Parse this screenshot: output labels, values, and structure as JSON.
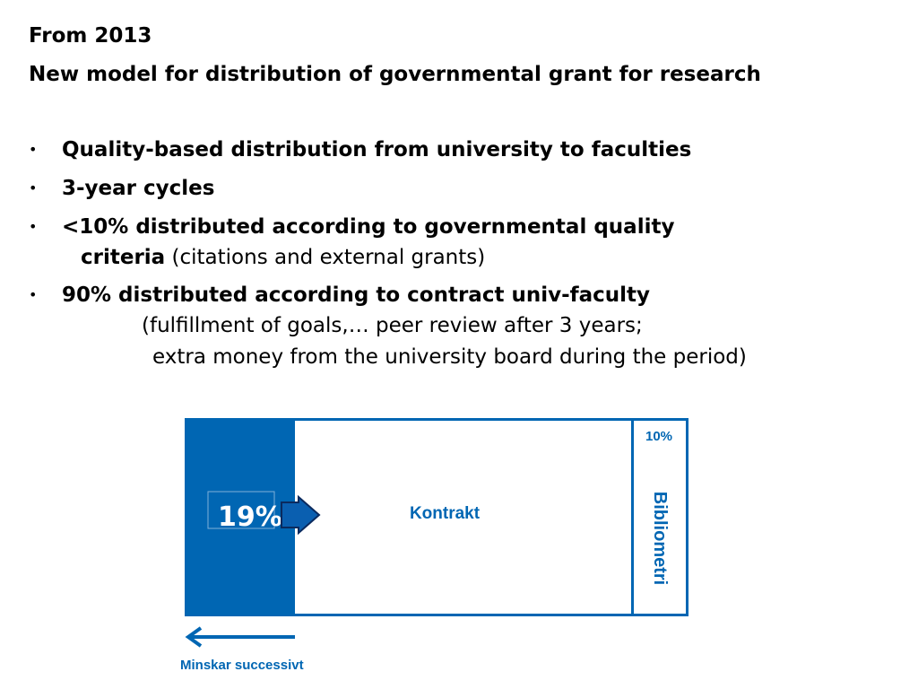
{
  "slide": {
    "heading": "From 2013",
    "subheading": "New model for distribution of governmental grant for research",
    "bullets": [
      {
        "text": "Quality-based distribution from university to faculties"
      },
      {
        "text": "3-year cycles"
      },
      {
        "text_line1": "<10% distributed according to governmental quality",
        "text_line2_bold": "criteria",
        "text_line2_normal": " (citations and external grants)"
      },
      {
        "text_line1": "90% distributed according to contract univ-faculty",
        "text_line2": "(fulfillment of goals,… peer review after 3 years;",
        "text_line3": "extra money from the university board during the period)"
      }
    ],
    "bullet_glyph": "•"
  },
  "diagram": {
    "left_value": "19%",
    "center_label": "Kontrakt",
    "right_value": "10%",
    "right_label": "Bibliometri",
    "arrow_caption": "Minskar successivt",
    "colors": {
      "brand_blue": "#0066b3",
      "arrow_fill": "#0a5fb0",
      "arrow_outline": "#0a2a5e"
    }
  }
}
